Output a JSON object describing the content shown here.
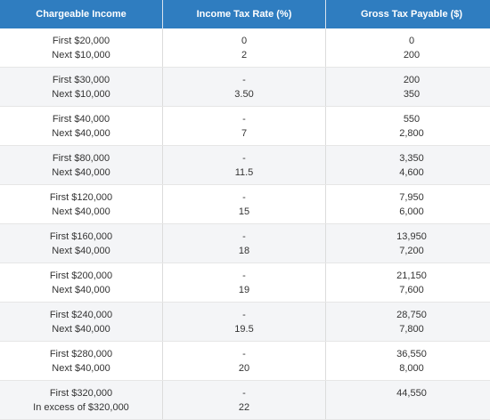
{
  "table": {
    "header": [
      "Chargeable Income",
      "Income Tax Rate (%)",
      "Gross Tax Payable ($)"
    ],
    "rows": [
      [
        [
          "First $20,000",
          "Next $10,000"
        ],
        [
          "0",
          "2"
        ],
        [
          "0",
          "200"
        ]
      ],
      [
        [
          "First $30,000",
          "Next $10,000"
        ],
        [
          "-",
          "3.50"
        ],
        [
          "200",
          "350"
        ]
      ],
      [
        [
          "First $40,000",
          "Next $40,000"
        ],
        [
          "-",
          "7"
        ],
        [
          "550",
          "2,800"
        ]
      ],
      [
        [
          "First $80,000",
          "Next $40,000"
        ],
        [
          "-",
          "11.5"
        ],
        [
          "3,350",
          "4,600"
        ]
      ],
      [
        [
          "First $120,000",
          "Next $40,000"
        ],
        [
          "-",
          "15"
        ],
        [
          "7,950",
          "6,000"
        ]
      ],
      [
        [
          "First $160,000",
          "Next $40,000"
        ],
        [
          "-",
          "18"
        ],
        [
          "13,950",
          "7,200"
        ]
      ],
      [
        [
          "First $200,000",
          "Next $40,000"
        ],
        [
          "-",
          "19"
        ],
        [
          "21,150",
          "7,600"
        ]
      ],
      [
        [
          "First $240,000",
          "Next $40,000"
        ],
        [
          "-",
          "19.5"
        ],
        [
          "28,750",
          "7,800"
        ]
      ],
      [
        [
          "First $280,000",
          "Next $40,000"
        ],
        [
          "-",
          "20"
        ],
        [
          "36,550",
          "8,000"
        ]
      ],
      [
        [
          "First $320,000",
          "In excess of $320,000"
        ],
        [
          "-",
          "22"
        ],
        [
          "44,550",
          ""
        ]
      ]
    ]
  }
}
